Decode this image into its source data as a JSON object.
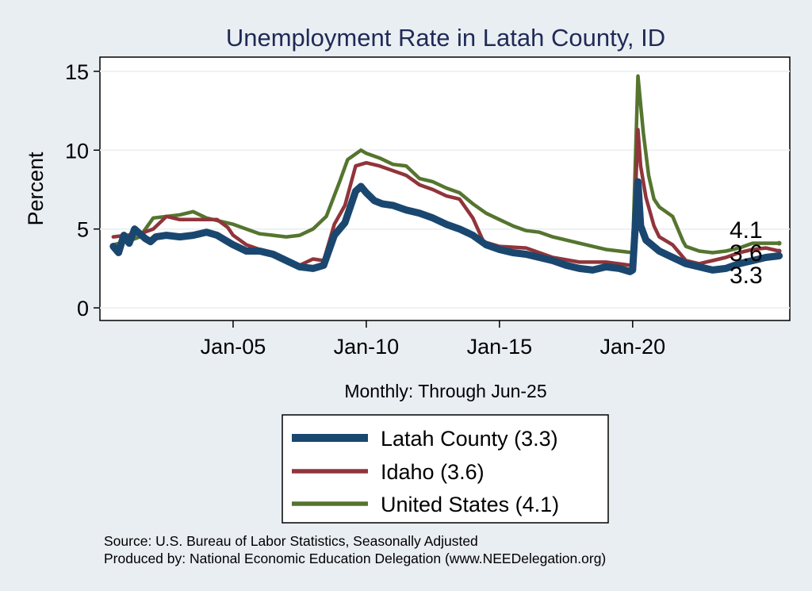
{
  "chart_data": {
    "type": "line",
    "title": "Unemployment Rate in Latah  County, ID",
    "ylabel": "Percent",
    "xlabel": "Monthly: Through Jun-25",
    "ylim": [
      -0.8,
      15.9
    ],
    "xlim": [
      2000.0,
      2025.9
    ],
    "yticks": [
      {
        "value": 0,
        "label": "0"
      },
      {
        "value": 5,
        "label": "5"
      },
      {
        "value": 10,
        "label": "10"
      },
      {
        "value": 15,
        "label": "15"
      }
    ],
    "xticks": [
      {
        "value": 2005.0,
        "label": "Jan-05"
      },
      {
        "value": 2010.0,
        "label": "Jan-10"
      },
      {
        "value": 2015.0,
        "label": "Jan-15"
      },
      {
        "value": 2020.0,
        "label": "Jan-20"
      }
    ],
    "grid": true,
    "legend_position": "bottom",
    "end_labels": [
      {
        "text": "4.1",
        "value": 4.1
      },
      {
        "text": "3.6",
        "value": 3.6
      },
      {
        "text": "3.3",
        "value": 3.3
      }
    ],
    "series": [
      {
        "name": "Latah  County (3.3)",
        "color": "#1a476f",
        "points": [
          [
            2000.5,
            3.9
          ],
          [
            2000.7,
            3.5
          ],
          [
            2000.9,
            4.6
          ],
          [
            2001.1,
            4.1
          ],
          [
            2001.3,
            5.0
          ],
          [
            2001.5,
            4.7
          ],
          [
            2001.7,
            4.4
          ],
          [
            2001.9,
            4.2
          ],
          [
            2002.1,
            4.5
          ],
          [
            2002.5,
            4.6
          ],
          [
            2003.0,
            4.5
          ],
          [
            2003.5,
            4.6
          ],
          [
            2004.0,
            4.8
          ],
          [
            2004.4,
            4.6
          ],
          [
            2004.8,
            4.2
          ],
          [
            2005.0,
            4.0
          ],
          [
            2005.5,
            3.6
          ],
          [
            2006.0,
            3.6
          ],
          [
            2006.5,
            3.4
          ],
          [
            2007.0,
            3.0
          ],
          [
            2007.5,
            2.6
          ],
          [
            2008.0,
            2.5
          ],
          [
            2008.4,
            2.7
          ],
          [
            2008.8,
            4.6
          ],
          [
            2009.2,
            5.4
          ],
          [
            2009.6,
            7.4
          ],
          [
            2009.8,
            7.7
          ],
          [
            2010.0,
            7.3
          ],
          [
            2010.3,
            6.8
          ],
          [
            2010.6,
            6.6
          ],
          [
            2011.0,
            6.5
          ],
          [
            2011.5,
            6.2
          ],
          [
            2012.0,
            6.0
          ],
          [
            2012.5,
            5.7
          ],
          [
            2013.0,
            5.3
          ],
          [
            2013.5,
            5.0
          ],
          [
            2014.0,
            4.6
          ],
          [
            2014.5,
            4.0
          ],
          [
            2015.0,
            3.7
          ],
          [
            2015.5,
            3.5
          ],
          [
            2016.0,
            3.4
          ],
          [
            2016.5,
            3.2
          ],
          [
            2017.0,
            3.0
          ],
          [
            2017.5,
            2.7
          ],
          [
            2018.0,
            2.5
          ],
          [
            2018.5,
            2.4
          ],
          [
            2019.0,
            2.6
          ],
          [
            2019.5,
            2.5
          ],
          [
            2019.9,
            2.3
          ],
          [
            2020.0,
            2.4
          ],
          [
            2020.2,
            8.0
          ],
          [
            2020.3,
            5.2
          ],
          [
            2020.5,
            4.3
          ],
          [
            2021.0,
            3.6
          ],
          [
            2021.5,
            3.2
          ],
          [
            2022.0,
            2.8
          ],
          [
            2022.5,
            2.6
          ],
          [
            2023.0,
            2.4
          ],
          [
            2023.5,
            2.5
          ],
          [
            2024.0,
            2.8
          ],
          [
            2024.5,
            3.0
          ],
          [
            2025.0,
            3.2
          ],
          [
            2025.5,
            3.3
          ]
        ]
      },
      {
        "name": "Idaho (3.6)",
        "color": "#90353b",
        "points": [
          [
            2000.5,
            4.5
          ],
          [
            2001.0,
            4.6
          ],
          [
            2001.5,
            4.7
          ],
          [
            2002.0,
            5.0
          ],
          [
            2002.5,
            5.8
          ],
          [
            2003.0,
            5.6
          ],
          [
            2003.5,
            5.6
          ],
          [
            2004.0,
            5.6
          ],
          [
            2004.4,
            5.6
          ],
          [
            2004.8,
            5.1
          ],
          [
            2005.0,
            4.6
          ],
          [
            2005.5,
            4.0
          ],
          [
            2006.0,
            3.7
          ],
          [
            2006.5,
            3.4
          ],
          [
            2007.0,
            3.0
          ],
          [
            2007.5,
            2.7
          ],
          [
            2008.0,
            3.1
          ],
          [
            2008.4,
            3.0
          ],
          [
            2008.8,
            5.3
          ],
          [
            2009.2,
            6.5
          ],
          [
            2009.6,
            9.0
          ],
          [
            2010.0,
            9.2
          ],
          [
            2010.5,
            9.0
          ],
          [
            2011.0,
            8.7
          ],
          [
            2011.5,
            8.4
          ],
          [
            2012.0,
            7.8
          ],
          [
            2012.5,
            7.5
          ],
          [
            2013.0,
            7.1
          ],
          [
            2013.5,
            6.9
          ],
          [
            2014.0,
            5.7
          ],
          [
            2014.4,
            4.2
          ],
          [
            2015.0,
            3.9
          ],
          [
            2016.0,
            3.8
          ],
          [
            2017.0,
            3.2
          ],
          [
            2018.0,
            2.9
          ],
          [
            2019.0,
            2.9
          ],
          [
            2019.9,
            2.7
          ],
          [
            2020.0,
            2.7
          ],
          [
            2020.2,
            11.3
          ],
          [
            2020.3,
            9.0
          ],
          [
            2020.5,
            7.0
          ],
          [
            2020.8,
            5.2
          ],
          [
            2021.0,
            4.5
          ],
          [
            2021.5,
            4.0
          ],
          [
            2022.0,
            3.0
          ],
          [
            2022.5,
            2.8
          ],
          [
            2023.0,
            3.0
          ],
          [
            2023.5,
            3.2
          ],
          [
            2024.0,
            3.5
          ],
          [
            2024.5,
            3.7
          ],
          [
            2025.0,
            3.8
          ],
          [
            2025.5,
            3.6
          ]
        ]
      },
      {
        "name": "United States (4.1)",
        "color": "#55752f",
        "points": [
          [
            2000.5,
            4.0
          ],
          [
            2001.0,
            4.2
          ],
          [
            2001.5,
            4.5
          ],
          [
            2002.0,
            5.7
          ],
          [
            2002.5,
            5.8
          ],
          [
            2003.0,
            5.9
          ],
          [
            2003.5,
            6.1
          ],
          [
            2004.0,
            5.7
          ],
          [
            2004.5,
            5.5
          ],
          [
            2005.0,
            5.3
          ],
          [
            2005.5,
            5.0
          ],
          [
            2006.0,
            4.7
          ],
          [
            2006.5,
            4.6
          ],
          [
            2007.0,
            4.5
          ],
          [
            2007.5,
            4.6
          ],
          [
            2008.0,
            5.0
          ],
          [
            2008.5,
            5.8
          ],
          [
            2009.0,
            8.0
          ],
          [
            2009.3,
            9.4
          ],
          [
            2009.8,
            10.0
          ],
          [
            2010.0,
            9.8
          ],
          [
            2010.5,
            9.5
          ],
          [
            2011.0,
            9.1
          ],
          [
            2011.5,
            9.0
          ],
          [
            2012.0,
            8.2
          ],
          [
            2012.5,
            8.0
          ],
          [
            2013.0,
            7.6
          ],
          [
            2013.5,
            7.3
          ],
          [
            2014.0,
            6.6
          ],
          [
            2014.5,
            6.0
          ],
          [
            2015.0,
            5.6
          ],
          [
            2015.5,
            5.2
          ],
          [
            2016.0,
            4.9
          ],
          [
            2016.5,
            4.8
          ],
          [
            2017.0,
            4.5
          ],
          [
            2017.5,
            4.3
          ],
          [
            2018.0,
            4.1
          ],
          [
            2018.5,
            3.9
          ],
          [
            2019.0,
            3.7
          ],
          [
            2019.5,
            3.6
          ],
          [
            2020.0,
            3.5
          ],
          [
            2020.2,
            14.7
          ],
          [
            2020.4,
            11.1
          ],
          [
            2020.6,
            8.4
          ],
          [
            2020.8,
            6.9
          ],
          [
            2021.0,
            6.4
          ],
          [
            2021.5,
            5.8
          ],
          [
            2021.9,
            4.2
          ],
          [
            2022.0,
            3.9
          ],
          [
            2022.5,
            3.6
          ],
          [
            2023.0,
            3.5
          ],
          [
            2023.5,
            3.6
          ],
          [
            2024.0,
            3.8
          ],
          [
            2024.5,
            4.1
          ],
          [
            2025.0,
            4.1
          ],
          [
            2025.5,
            4.1
          ]
        ]
      }
    ]
  },
  "source": {
    "line1": "Source: U.S. Bureau of Labor Statistics, Seasonally Adjusted",
    "line2": "Produced by: National Economic Education Delegation (www.NEEDelegation.org)"
  }
}
